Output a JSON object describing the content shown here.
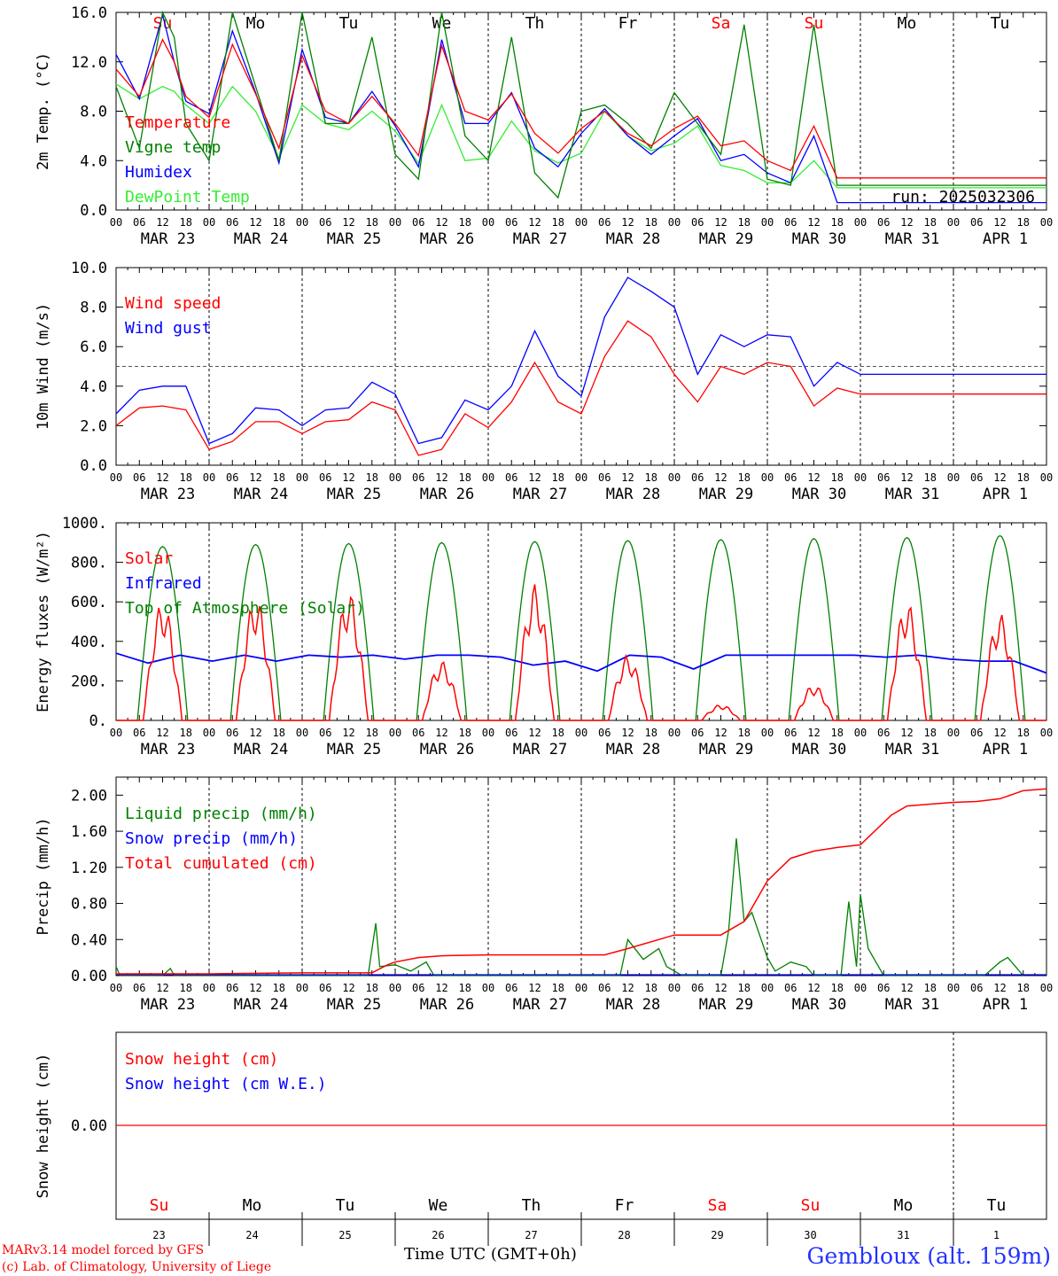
{
  "colors": {
    "red": "#ff0000",
    "green": "#008000",
    "blue": "#0000ff",
    "lightgreen": "#33ee33"
  },
  "day_names": [
    "Su",
    "Mo",
    "Tu",
    "We",
    "Th",
    "Fr",
    "Sa",
    "Su",
    "Mo",
    "Tu"
  ],
  "weekend_days": [
    0,
    6,
    7
  ],
  "hour_ticks": [
    "00",
    "06",
    "12",
    "18"
  ],
  "date_labels": [
    "MAR 23",
    "MAR 24",
    "MAR 25",
    "MAR 26",
    "MAR 27",
    "MAR 28",
    "MAR 29",
    "MAR 30",
    "MAR 31",
    "APR  1"
  ],
  "bottom_dates": [
    "23",
    "24",
    "25",
    "26",
    "27",
    "28",
    "29",
    "30",
    "31",
    "1"
  ],
  "footer": {
    "model": "MARv3.14 model forced by GFS",
    "lab": "(c) Lab. of Climatology, University of Liege",
    "time_label": "Time UTC (GMT+0h)",
    "station": "Gembloux (alt. 159m)"
  },
  "chart_data": [
    {
      "type": "line",
      "ylabel": "2m Temp. (°C)",
      "ylim": [
        0,
        16
      ],
      "yticks": [
        "0.0",
        "4.0",
        "8.0",
        "12.0",
        "16.0"
      ],
      "run_label": "run: 2025032306",
      "legend": [
        "Temperature",
        "Vigne temp",
        "Humidex",
        "DewPoint Temp"
      ],
      "x_hours": [
        0,
        6,
        12,
        15,
        18,
        24,
        30,
        36,
        42,
        48,
        54,
        60,
        66,
        72,
        78,
        84,
        90,
        96,
        102,
        108,
        114,
        120,
        126,
        132,
        138,
        144,
        150,
        156,
        162,
        168,
        174,
        180,
        186,
        192,
        198,
        204,
        210,
        216,
        222,
        228,
        234,
        240
      ],
      "series": [
        {
          "name": "Temperature",
          "color": "red",
          "values": [
            11.4,
            9.2,
            13.8,
            12.0,
            9.2,
            7.5,
            13.4,
            9.4,
            5.0,
            12.5,
            8.0,
            7.0,
            9.2,
            7.0,
            4.4,
            13.3,
            8.0,
            7.3,
            9.4,
            6.2,
            4.6,
            6.6,
            8.0,
            6.2,
            5.2,
            6.6,
            7.6,
            5.2,
            5.6,
            4.0,
            3.2,
            6.8,
            2.6,
            2.6,
            2.6,
            2.6,
            2.6,
            2.6,
            2.6,
            2.6,
            2.6,
            2.6
          ]
        },
        {
          "name": "Vigne temp",
          "color": "green",
          "values": [
            10.0,
            5.0,
            16.0,
            14.0,
            7.0,
            4.0,
            16.0,
            10.0,
            4.0,
            16.0,
            7.0,
            7.0,
            14.0,
            4.5,
            2.5,
            16.0,
            6.0,
            4.0,
            14.0,
            3.0,
            1.0,
            8.0,
            8.5,
            7.0,
            5.0,
            9.5,
            7.0,
            4.5,
            15.0,
            2.5,
            2.0,
            15.0,
            2.0,
            2.0,
            2.0,
            2.0,
            2.0,
            2.0,
            2.0,
            2.0,
            2.0,
            2.0
          ]
        },
        {
          "name": "Humidex",
          "color": "blue",
          "values": [
            12.6,
            9.0,
            15.8,
            12.0,
            8.8,
            7.8,
            14.5,
            9.5,
            3.8,
            13.0,
            7.5,
            7.0,
            9.6,
            6.8,
            3.5,
            13.8,
            7.0,
            7.0,
            9.5,
            5.0,
            3.5,
            6.2,
            8.2,
            6.0,
            4.5,
            6.0,
            7.4,
            4.0,
            4.5,
            3.0,
            2.2,
            6.0,
            0.6,
            0.6,
            0.6,
            0.6,
            0.6,
            0.6,
            0.6,
            0.6,
            0.6,
            0.6
          ]
        },
        {
          "name": "DewPoint Temp",
          "color": "lightgreen",
          "values": [
            10.2,
            9.0,
            10.0,
            9.6,
            8.5,
            7.0,
            10.0,
            8.0,
            4.2,
            8.5,
            7.0,
            6.5,
            8.0,
            6.4,
            3.8,
            8.5,
            4.0,
            4.2,
            7.2,
            4.8,
            3.8,
            4.6,
            8.0,
            6.0,
            4.8,
            5.4,
            6.8,
            3.6,
            3.2,
            2.2,
            2.2,
            4.0,
            1.8,
            1.8,
            1.8,
            1.8,
            1.8,
            1.8,
            1.8,
            1.8,
            1.8,
            1.8
          ]
        }
      ]
    },
    {
      "type": "line",
      "ylabel": "10m Wind (m/s)",
      "ylim": [
        0,
        10
      ],
      "yticks": [
        "0.0",
        "2.0",
        "4.0",
        "6.0",
        "8.0",
        "10.0"
      ],
      "ref_line": 5,
      "legend": [
        "Wind speed",
        "Wind gust"
      ],
      "x_hours": [
        0,
        6,
        12,
        18,
        24,
        30,
        36,
        42,
        48,
        54,
        60,
        66,
        72,
        78,
        84,
        90,
        96,
        102,
        108,
        114,
        120,
        126,
        132,
        138,
        144,
        150,
        156,
        162,
        168,
        174,
        180,
        186,
        192,
        198,
        204,
        210,
        216,
        222,
        228,
        234,
        240
      ],
      "series": [
        {
          "name": "Wind speed",
          "color": "red",
          "values": [
            2.0,
            2.9,
            3.0,
            2.8,
            0.8,
            1.2,
            2.2,
            2.2,
            1.6,
            2.2,
            2.3,
            3.2,
            2.8,
            0.5,
            0.8,
            2.6,
            1.9,
            3.2,
            5.2,
            3.2,
            2.6,
            5.5,
            7.3,
            6.5,
            4.6,
            3.2,
            5.0,
            4.6,
            5.2,
            5.0,
            3.0,
            3.9,
            3.6,
            3.6,
            3.6,
            3.6,
            3.6,
            3.6,
            3.6,
            3.6,
            3.6
          ]
        },
        {
          "name": "Wind gust",
          "color": "blue",
          "values": [
            2.6,
            3.8,
            4.0,
            4.0,
            1.1,
            1.6,
            2.9,
            2.8,
            2.0,
            2.8,
            2.9,
            4.2,
            3.6,
            1.1,
            1.4,
            3.3,
            2.8,
            4.0,
            6.8,
            4.5,
            3.5,
            7.5,
            9.5,
            8.8,
            8.0,
            4.6,
            6.6,
            6.0,
            6.6,
            6.5,
            4.0,
            5.2,
            4.6,
            4.6,
            4.6,
            4.6,
            4.6,
            4.6,
            4.6,
            4.6,
            4.6
          ]
        }
      ]
    },
    {
      "type": "line",
      "ylabel": "Energy fluxes (W/m²)",
      "ylim": [
        0,
        1000
      ],
      "yticks": [
        "0.",
        "200.",
        "400.",
        "600.",
        "800.",
        "1000."
      ],
      "legend": [
        "Solar",
        "Infrared",
        "Top of Atmosphere (Solar)"
      ],
      "toa_peaks": [
        880,
        890,
        895,
        900,
        905,
        910,
        915,
        920,
        925,
        935
      ],
      "solar_peaks": [
        600,
        620,
        650,
        300,
        690,
        330,
        80,
        180,
        600,
        540
      ],
      "infrared": [
        340,
        290,
        330,
        300,
        330,
        300,
        330,
        320,
        330,
        310,
        330,
        330,
        320,
        280,
        300,
        250,
        330,
        320,
        260,
        330,
        330,
        330,
        330,
        330,
        320,
        330,
        310,
        300,
        300,
        240
      ],
      "series": [
        {
          "name": "Solar",
          "color": "red"
        },
        {
          "name": "Infrared",
          "color": "blue"
        },
        {
          "name": "Top of Atmosphere (Solar)",
          "color": "green"
        }
      ]
    },
    {
      "type": "line",
      "ylabel": "Precip (mm/h)",
      "ylim": [
        0,
        2.2
      ],
      "yticks": [
        "0.00",
        "0.40",
        "0.80",
        "1.20",
        "1.60",
        "2.00"
      ],
      "legend": [
        "Liquid precip (mm/h)",
        "Snow precip (mm/h)",
        "Total cumulated (cm)"
      ],
      "x_hours": [
        0,
        12,
        24,
        48,
        66,
        70,
        72,
        78,
        84,
        96,
        108,
        126,
        132,
        144,
        156,
        162,
        168,
        174,
        180,
        186,
        192,
        200,
        204,
        210,
        216,
        222,
        228,
        234,
        240
      ],
      "series": [
        {
          "name": "Total cumulated (cm)",
          "color": "red",
          "values": [
            0.02,
            0.02,
            0.02,
            0.03,
            0.03,
            0.12,
            0.15,
            0.2,
            0.22,
            0.23,
            0.23,
            0.23,
            0.3,
            0.45,
            0.45,
            0.6,
            1.05,
            1.3,
            1.38,
            1.42,
            1.45,
            1.78,
            1.88,
            1.9,
            1.92,
            1.93,
            1.96,
            2.05,
            2.07
          ]
        },
        {
          "name": "Liquid precip (mm/h)",
          "color": "green",
          "liquid_points": [
            [
              0,
              0.1
            ],
            [
              1,
              0.0
            ],
            [
              12,
              0.0
            ],
            [
              14,
              0.08
            ],
            [
              15,
              0.0
            ],
            [
              65,
              0.0
            ],
            [
              67,
              0.58
            ],
            [
              68,
              0.1
            ],
            [
              72,
              0.12
            ],
            [
              76,
              0.05
            ],
            [
              80,
              0.15
            ],
            [
              82,
              0.0
            ],
            [
              130,
              0.0
            ],
            [
              132,
              0.4
            ],
            [
              136,
              0.18
            ],
            [
              140,
              0.3
            ],
            [
              142,
              0.1
            ],
            [
              146,
              0.0
            ],
            [
              156,
              0.0
            ],
            [
              158,
              0.5
            ],
            [
              160,
              1.52
            ],
            [
              162,
              0.6
            ],
            [
              164,
              0.7
            ],
            [
              168,
              0.2
            ],
            [
              170,
              0.05
            ],
            [
              174,
              0.15
            ],
            [
              178,
              0.1
            ],
            [
              180,
              0.0
            ],
            [
              187,
              0.0
            ],
            [
              189,
              0.82
            ],
            [
              191,
              0.1
            ],
            [
              192,
              0.9
            ],
            [
              194,
              0.3
            ],
            [
              196,
              0.15
            ],
            [
              198,
              0.0
            ],
            [
              224,
              0.0
            ],
            [
              228,
              0.15
            ],
            [
              230,
              0.2
            ],
            [
              232,
              0.1
            ],
            [
              234,
              0.0
            ]
          ]
        },
        {
          "name": "Snow precip (mm/h)",
          "color": "blue",
          "values": []
        }
      ]
    },
    {
      "type": "line",
      "ylabel": "Snow height (cm)",
      "yticks": [
        "0.00"
      ],
      "legend": [
        "Snow height (cm)",
        "Snow height (cm W.E.)"
      ],
      "series": [
        {
          "name": "Snow height (cm)",
          "color": "red",
          "values": [
            0,
            0
          ]
        },
        {
          "name": "Snow height (cm W.E.)",
          "color": "blue",
          "values": []
        }
      ]
    }
  ]
}
